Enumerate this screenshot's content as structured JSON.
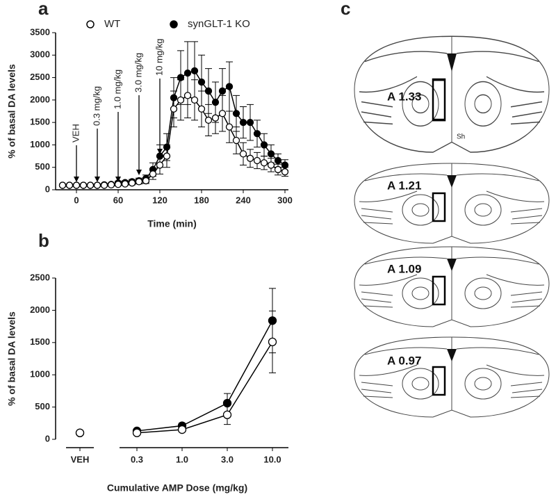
{
  "panels": [
    "a",
    "b",
    "c"
  ],
  "chart_data": [
    {
      "type": "line",
      "xlabel": "Time (min)",
      "ylabel": "% of basal DA levels",
      "x": [
        -20,
        -10,
        0,
        10,
        20,
        30,
        40,
        50,
        60,
        70,
        80,
        90,
        100,
        110,
        120,
        130,
        140,
        150,
        160,
        170,
        180,
        190,
        200,
        210,
        220,
        230,
        240,
        250,
        260,
        270,
        280,
        290,
        300
      ],
      "xlim": [
        -30,
        305
      ],
      "ylim": [
        0,
        3500
      ],
      "xticks": [
        0,
        60,
        120,
        180,
        240,
        300
      ],
      "yticks": [
        0,
        500,
        1000,
        1500,
        2000,
        2500,
        3000,
        3500
      ],
      "legend": "top",
      "series": [
        {
          "name": "synGLT-1 KO",
          "color": "#000000",
          "marker": "filled",
          "values": [
            100,
            100,
            100,
            100,
            100,
            100,
            110,
            120,
            150,
            160,
            180,
            200,
            250,
            450,
            750,
            950,
            2050,
            2500,
            2600,
            2650,
            2400,
            2200,
            1950,
            2200,
            2300,
            1700,
            1500,
            1500,
            1250,
            1000,
            800,
            650,
            550
          ],
          "errors": [
            20,
            20,
            20,
            20,
            20,
            20,
            20,
            30,
            40,
            40,
            50,
            60,
            80,
            150,
            250,
            300,
            450,
            600,
            700,
            650,
            600,
            500,
            450,
            500,
            550,
            400,
            350,
            400,
            300,
            250,
            200,
            150,
            120
          ]
        },
        {
          "name": "WT",
          "color": "#000000",
          "marker": "open",
          "values": [
            100,
            100,
            100,
            100,
            100,
            100,
            100,
            110,
            120,
            130,
            150,
            180,
            200,
            350,
            550,
            750,
            1800,
            2000,
            2100,
            2000,
            1800,
            1550,
            1600,
            1700,
            1400,
            1100,
            800,
            700,
            650,
            600,
            550,
            450,
            400
          ],
          "errors": [
            20,
            20,
            20,
            20,
            20,
            20,
            20,
            20,
            30,
            30,
            40,
            50,
            60,
            120,
            200,
            250,
            400,
            450,
            500,
            450,
            400,
            350,
            350,
            400,
            350,
            300,
            250,
            200,
            180,
            150,
            150,
            120,
            100
          ]
        }
      ],
      "annotations": [
        {
          "text": "VEH",
          "x": 0
        },
        {
          "text": "0.3 mg/kg",
          "x": 30
        },
        {
          "text": "1.0 mg/kg",
          "x": 60
        },
        {
          "text": "3.0 mg/kg",
          "x": 90
        },
        {
          "text": "10 mg/kg",
          "x": 120
        }
      ]
    },
    {
      "type": "line",
      "xlabel": "Cumulative AMP Dose (mg/kg)",
      "ylabel": "% of basal DA levels",
      "categories": [
        "VEH",
        "0.3",
        "1.0",
        "3.0",
        "10.0"
      ],
      "axis_break": true,
      "ylim": [
        0,
        2500
      ],
      "yticks": [
        0,
        500,
        1000,
        1500,
        2000,
        2500
      ],
      "series": [
        {
          "name": "synGLT-1 KO",
          "color": "#000000",
          "marker": "filled",
          "values": [
            100,
            130,
            210,
            560,
            1840
          ],
          "errors": [
            20,
            20,
            40,
            150,
            500
          ]
        },
        {
          "name": "WT",
          "color": "#000000",
          "marker": "open",
          "values": [
            100,
            100,
            150,
            380,
            1510
          ],
          "errors": [
            20,
            30,
            30,
            150,
            480
          ]
        }
      ]
    }
  ],
  "brain_sections": {
    "labels": [
      "A 1.33",
      "A 1.21",
      "A 1.09",
      "A 0.97"
    ],
    "sh_label": "Sh"
  }
}
